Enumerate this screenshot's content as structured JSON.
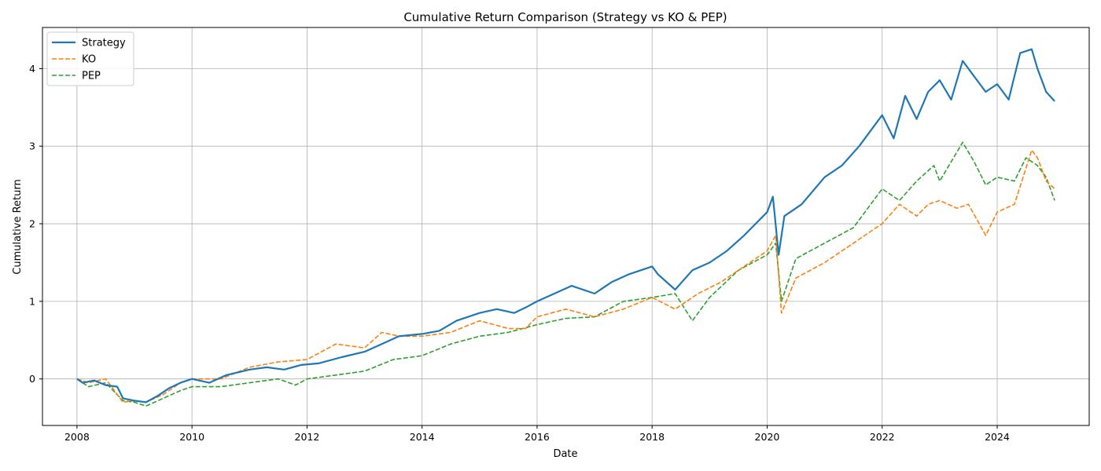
{
  "chart_data": {
    "type": "line",
    "title": "Cumulative Return Comparison (Strategy vs KO & PEP)",
    "xlabel": "Date",
    "ylabel": "Cumulative Return",
    "xlim": [
      2007.4,
      2025.6
    ],
    "ylim": [
      -0.6,
      4.53
    ],
    "x_ticks": [
      2008,
      2010,
      2012,
      2014,
      2016,
      2018,
      2020,
      2022,
      2024
    ],
    "y_ticks": [
      0,
      1,
      2,
      3,
      4
    ],
    "grid": true,
    "legend_position": "top-left",
    "series": [
      {
        "name": "Strategy",
        "color": "#1f77b4",
        "style": "solid",
        "x": [
          2008.0,
          2008.1,
          2008.3,
          2008.5,
          2008.7,
          2008.8,
          2009.0,
          2009.2,
          2009.4,
          2009.6,
          2009.8,
          2010.0,
          2010.3,
          2010.6,
          2011.0,
          2011.3,
          2011.6,
          2011.9,
          2012.2,
          2012.6,
          2013.0,
          2013.3,
          2013.6,
          2014.0,
          2014.3,
          2014.6,
          2015.0,
          2015.3,
          2015.6,
          2015.8,
          2016.0,
          2016.3,
          2016.6,
          2017.0,
          2017.3,
          2017.6,
          2018.0,
          2018.1,
          2018.4,
          2018.7,
          2019.0,
          2019.3,
          2019.6,
          2020.0,
          2020.1,
          2020.2,
          2020.3,
          2020.6,
          2021.0,
          2021.3,
          2021.6,
          2022.0,
          2022.2,
          2022.4,
          2022.6,
          2022.8,
          2023.0,
          2023.2,
          2023.4,
          2023.6,
          2023.8,
          2024.0,
          2024.2,
          2024.4,
          2024.6,
          2024.7,
          2024.85,
          2025.0
        ],
        "values": [
          0.0,
          -0.05,
          -0.02,
          -0.08,
          -0.1,
          -0.25,
          -0.28,
          -0.3,
          -0.22,
          -0.12,
          -0.05,
          0.0,
          -0.05,
          0.05,
          0.12,
          0.15,
          0.12,
          0.18,
          0.2,
          0.28,
          0.35,
          0.45,
          0.55,
          0.58,
          0.62,
          0.75,
          0.85,
          0.9,
          0.85,
          0.92,
          1.0,
          1.1,
          1.2,
          1.1,
          1.25,
          1.35,
          1.45,
          1.35,
          1.15,
          1.4,
          1.5,
          1.65,
          1.85,
          2.15,
          2.35,
          1.6,
          2.1,
          2.25,
          2.6,
          2.75,
          3.0,
          3.4,
          3.1,
          3.65,
          3.35,
          3.7,
          3.85,
          3.6,
          4.1,
          3.9,
          3.7,
          3.8,
          3.6,
          4.2,
          4.25,
          4.0,
          3.7,
          3.58
        ]
      },
      {
        "name": "KO",
        "color": "#ff7f0e",
        "style": "dashed",
        "x": [
          2008.0,
          2008.2,
          2008.5,
          2008.8,
          2009.0,
          2009.2,
          2009.5,
          2009.8,
          2010.0,
          2010.5,
          2011.0,
          2011.5,
          2012.0,
          2012.5,
          2013.0,
          2013.3,
          2013.6,
          2014.0,
          2014.5,
          2015.0,
          2015.5,
          2015.8,
          2016.0,
          2016.5,
          2017.0,
          2017.5,
          2018.0,
          2018.4,
          2018.8,
          2019.2,
          2019.6,
          2020.0,
          2020.15,
          2020.25,
          2020.5,
          2021.0,
          2021.5,
          2022.0,
          2022.3,
          2022.6,
          2022.8,
          2023.0,
          2023.3,
          2023.5,
          2023.8,
          2024.0,
          2024.3,
          2024.6,
          2024.7,
          2024.85,
          2025.0
        ],
        "values": [
          0.0,
          -0.05,
          0.0,
          -0.3,
          -0.28,
          -0.3,
          -0.2,
          -0.05,
          0.0,
          0.0,
          0.15,
          0.22,
          0.25,
          0.45,
          0.4,
          0.6,
          0.55,
          0.55,
          0.6,
          0.75,
          0.65,
          0.65,
          0.8,
          0.9,
          0.8,
          0.9,
          1.05,
          0.9,
          1.1,
          1.25,
          1.45,
          1.65,
          1.85,
          0.85,
          1.3,
          1.5,
          1.75,
          2.0,
          2.25,
          2.1,
          2.25,
          2.3,
          2.2,
          2.25,
          1.85,
          2.15,
          2.25,
          2.95,
          2.85,
          2.55,
          2.45
        ]
      },
      {
        "name": "PEP",
        "color": "#2ca02c",
        "style": "dashed",
        "x": [
          2008.0,
          2008.2,
          2008.5,
          2008.8,
          2009.0,
          2009.2,
          2009.5,
          2009.8,
          2010.0,
          2010.5,
          2011.0,
          2011.5,
          2011.8,
          2012.0,
          2012.5,
          2013.0,
          2013.5,
          2014.0,
          2014.5,
          2015.0,
          2015.5,
          2016.0,
          2016.5,
          2017.0,
          2017.5,
          2018.0,
          2018.4,
          2018.7,
          2019.0,
          2019.5,
          2020.0,
          2020.15,
          2020.25,
          2020.5,
          2021.0,
          2021.5,
          2022.0,
          2022.3,
          2022.6,
          2022.9,
          2023.0,
          2023.4,
          2023.6,
          2023.8,
          2024.0,
          2024.3,
          2024.5,
          2024.7,
          2024.85,
          2025.0
        ],
        "values": [
          0.0,
          -0.1,
          -0.05,
          -0.28,
          -0.3,
          -0.35,
          -0.25,
          -0.15,
          -0.1,
          -0.1,
          -0.05,
          0.0,
          -0.08,
          0.0,
          0.05,
          0.1,
          0.25,
          0.3,
          0.45,
          0.55,
          0.6,
          0.7,
          0.78,
          0.8,
          1.0,
          1.05,
          1.1,
          0.75,
          1.05,
          1.4,
          1.6,
          1.75,
          1.0,
          1.55,
          1.75,
          1.95,
          2.45,
          2.3,
          2.55,
          2.75,
          2.55,
          3.05,
          2.8,
          2.5,
          2.6,
          2.55,
          2.85,
          2.75,
          2.6,
          2.3
        ]
      }
    ]
  }
}
